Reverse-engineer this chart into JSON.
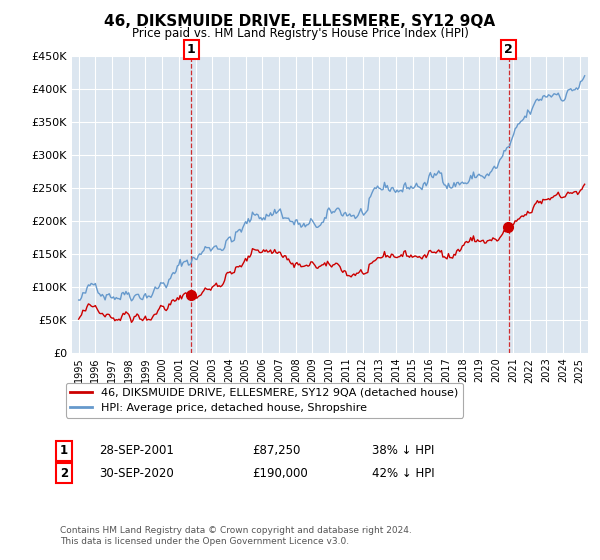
{
  "title": "46, DIKSMUIDE DRIVE, ELLESMERE, SY12 9QA",
  "subtitle": "Price paid vs. HM Land Registry's House Price Index (HPI)",
  "red_label": "46, DIKSMUIDE DRIVE, ELLESMERE, SY12 9QA (detached house)",
  "blue_label": "HPI: Average price, detached house, Shropshire",
  "sale1_date": "28-SEP-2001",
  "sale1_price_str": "£87,250",
  "sale1_note": "38% ↓ HPI",
  "sale2_date": "30-SEP-2020",
  "sale2_price_str": "£190,000",
  "sale2_note": "42% ↓ HPI",
  "footer": "Contains HM Land Registry data © Crown copyright and database right 2024.\nThis data is licensed under the Open Government Licence v3.0.",
  "ylim": [
    0,
    450000
  ],
  "yticks": [
    0,
    50000,
    100000,
    150000,
    200000,
    250000,
    300000,
    350000,
    400000,
    450000
  ],
  "ytick_labels": [
    "£0",
    "£50K",
    "£100K",
    "£150K",
    "£200K",
    "£250K",
    "£300K",
    "£350K",
    "£400K",
    "£450K"
  ],
  "xlim_start": 1994.6,
  "xlim_end": 2025.5,
  "background_color": "#ffffff",
  "plot_bg_color": "#dce6f0",
  "grid_color": "#ffffff",
  "red_color": "#cc0000",
  "blue_color": "#6699cc",
  "marker1_year": 2001.75,
  "marker2_year": 2020.75,
  "sale1_price": 87250,
  "sale2_price": 190000
}
